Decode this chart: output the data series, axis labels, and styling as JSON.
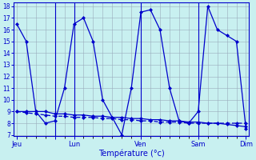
{
  "xlabel": "Température (°c)",
  "bg_color": "#c8f0f0",
  "line_color": "#0000cc",
  "grid_color": "#99aabb",
  "axis_color": "#0000cc",
  "ylim": [
    7,
    18
  ],
  "yticks": [
    7,
    8,
    9,
    10,
    11,
    12,
    13,
    14,
    15,
    16,
    17,
    18
  ],
  "num_points": 25,
  "series_main": [
    16.5,
    15.0,
    9.0,
    8.0,
    8.2,
    11.0,
    16.5,
    17.0,
    15.0,
    10.0,
    8.5,
    7.0,
    11.0,
    17.5,
    17.7,
    16.0,
    11.0,
    8.2,
    8.0,
    9.0,
    18.0,
    16.0,
    15.5,
    15.0,
    7.5
  ],
  "series_flat1": [
    9.0,
    9.0,
    9.0,
    9.0,
    8.8,
    8.8,
    8.7,
    8.7,
    8.6,
    8.6,
    8.5,
    8.5,
    8.4,
    8.4,
    8.3,
    8.3,
    8.2,
    8.2,
    8.1,
    8.1,
    8.0,
    8.0,
    7.9,
    7.8,
    7.7
  ],
  "series_flat2": [
    9.0,
    8.9,
    8.8,
    8.7,
    8.6,
    8.6,
    8.5,
    8.5,
    8.5,
    8.4,
    8.4,
    8.3,
    8.3,
    8.2,
    8.2,
    8.1,
    8.1,
    8.1,
    8.0,
    8.0,
    8.0,
    8.0,
    8.0,
    8.0,
    8.0
  ],
  "day_tick_positions": [
    0,
    4,
    6,
    13,
    19,
    24
  ],
  "day_labels": [
    "Jeu",
    "",
    "Lun",
    "Ven",
    "Sam",
    "Dim"
  ],
  "vline_positions": [
    4,
    6,
    13,
    19
  ]
}
